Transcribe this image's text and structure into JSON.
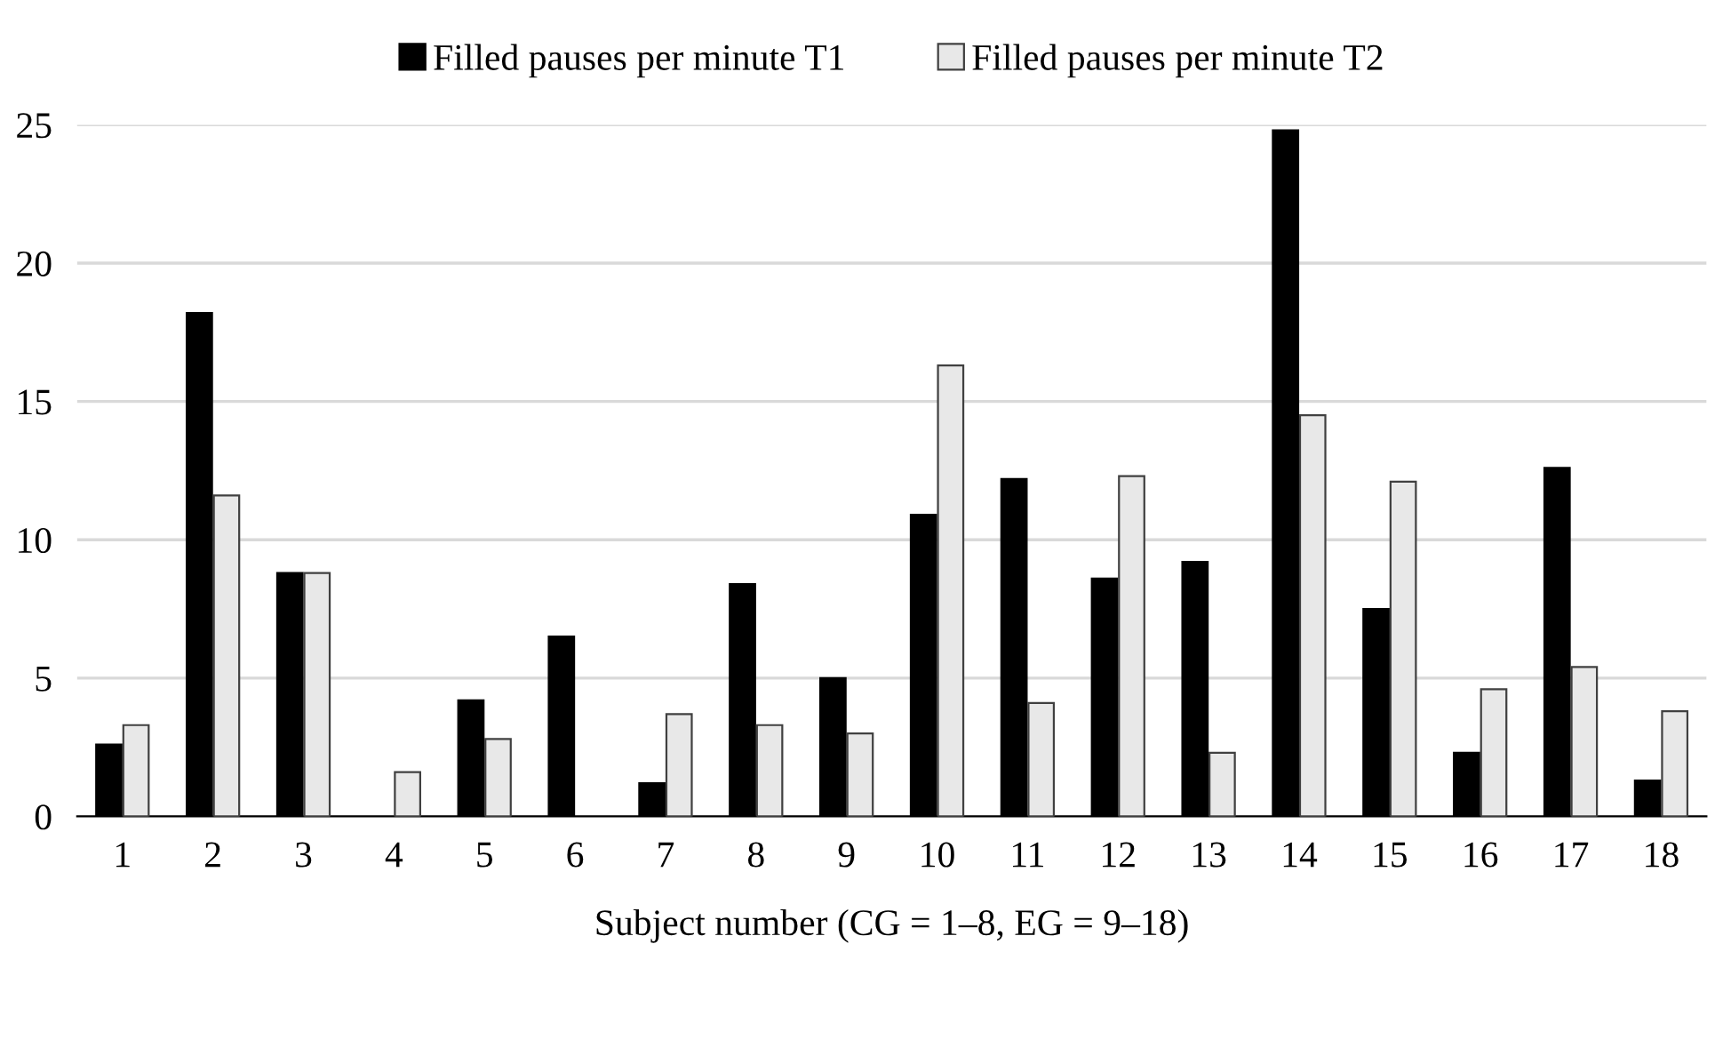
{
  "chart_data": {
    "type": "bar",
    "xlabel": "Subject number (CG = 1–8, EG = 9–18)",
    "categories": [
      "1",
      "2",
      "3",
      "4",
      "5",
      "6",
      "7",
      "8",
      "9",
      "10",
      "11",
      "12",
      "13",
      "14",
      "15",
      "16",
      "17",
      "18"
    ],
    "series": [
      {
        "name": "Filled pauses per minute T1",
        "color": "#000000",
        "values": [
          2.6,
          18.2,
          8.8,
          0,
          4.2,
          6.5,
          1.2,
          8.4,
          5.0,
          10.9,
          12.2,
          8.6,
          9.2,
          24.8,
          7.5,
          2.3,
          12.6,
          1.3
        ]
      },
      {
        "name": "Filled pauses per minute T2",
        "color": "#e8e8e8",
        "values": [
          3.3,
          11.6,
          8.8,
          1.6,
          2.8,
          0,
          3.7,
          3.3,
          3.0,
          16.3,
          4.1,
          12.3,
          2.3,
          14.5,
          12.1,
          4.6,
          5.4,
          3.8
        ]
      }
    ],
    "ylim": [
      0,
      25
    ],
    "yticks": [
      0,
      5,
      10,
      15,
      20,
      25
    ],
    "grid": "y",
    "legend": "top"
  }
}
